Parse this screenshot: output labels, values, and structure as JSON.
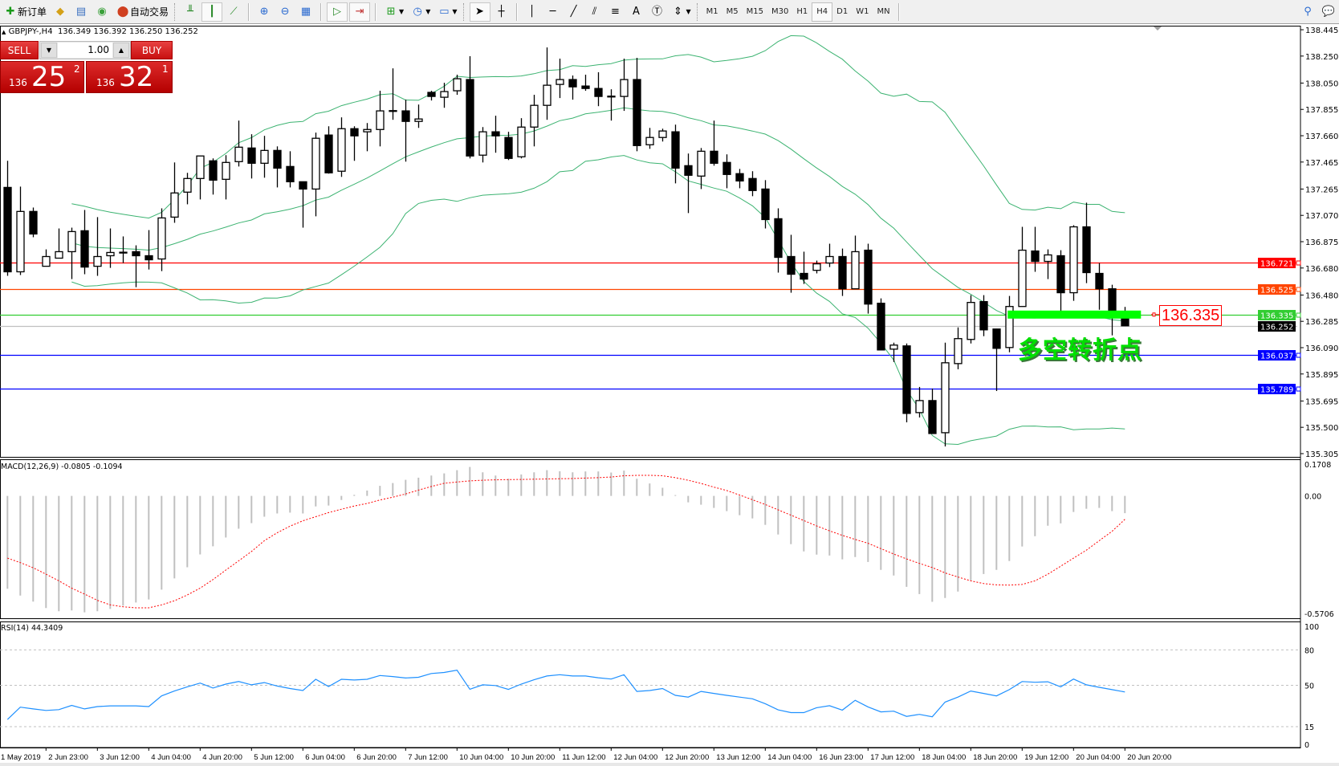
{
  "toolbar": {
    "new_order_label": "新订单",
    "auto_trading_label": "自动交易",
    "timeframes": [
      "M1",
      "M5",
      "M15",
      "M30",
      "H1",
      "H4",
      "D1",
      "W1",
      "MN"
    ],
    "active_timeframe": "H4"
  },
  "chart_header": {
    "symbol": "GBPJPY-,H4",
    "ohlc": "136.349 136.392 136.250 136.252"
  },
  "trade_panel": {
    "sell_label": "SELL",
    "buy_label": "BUY",
    "lot": "1.00",
    "sell_price": {
      "prefix": "136",
      "big": "25",
      "sup": "2"
    },
    "buy_price": {
      "prefix": "136",
      "big": "32",
      "sup": "1"
    }
  },
  "annotation": {
    "text": "多空转折点",
    "price_label": "136.335",
    "color": "#00e000"
  },
  "chart_data": {
    "type": "candlestick",
    "symbol": "GBPJPY",
    "timeframe": "H4",
    "ylim": [
      135.281,
      138.475
    ],
    "price_axis_ticks": [
      "138.445",
      "138.250",
      "138.050",
      "137.855",
      "137.660",
      "137.465",
      "137.265",
      "137.070",
      "136.875",
      "136.680",
      "136.480",
      "136.285",
      "136.090",
      "135.895",
      "135.695",
      "135.500",
      "135.305"
    ],
    "time_axis_labels": [
      "1 May 2019",
      "2 Jun 23:00",
      "3 Jun 12:00",
      "4 Jun 04:00",
      "4 Jun 20:00",
      "5 Jun 12:00",
      "6 Jun 04:00",
      "6 Jun 20:00",
      "7 Jun 12:00",
      "10 Jun 04:00",
      "10 Jun 20:00",
      "11 Jun 12:00",
      "12 Jun 04:00",
      "12 Jun 20:00",
      "13 Jun 12:00",
      "14 Jun 04:00",
      "16 Jun 23:00",
      "17 Jun 12:00",
      "18 Jun 04:00",
      "18 Jun 20:00",
      "19 Jun 12:00",
      "20 Jun 04:00",
      "20 Jun 20:00"
    ],
    "ohlc": [
      [
        137.277,
        137.474,
        136.622,
        136.652
      ],
      [
        136.652,
        137.283,
        136.628,
        137.099
      ],
      [
        137.099,
        137.128,
        136.908,
        136.932
      ],
      [
        136.693,
        136.818,
        136.693,
        136.765
      ],
      [
        136.753,
        136.973,
        136.753,
        136.801
      ],
      [
        136.801,
        136.979,
        136.598,
        136.95
      ],
      [
        136.956,
        137.11,
        136.634,
        136.687
      ],
      [
        136.693,
        137.057,
        136.622,
        136.765
      ],
      [
        136.771,
        136.973,
        136.681,
        136.795
      ],
      [
        136.797,
        136.914,
        136.717,
        136.795
      ],
      [
        136.801,
        136.848,
        136.538,
        136.771
      ],
      [
        136.771,
        136.961,
        136.669,
        136.741
      ],
      [
        136.747,
        137.122,
        136.657,
        137.051
      ],
      [
        137.057,
        137.462,
        137.015,
        137.236
      ],
      [
        137.242,
        137.385,
        137.152,
        137.343
      ],
      [
        137.343,
        137.512,
        137.188,
        137.51
      ],
      [
        137.474,
        137.492,
        137.224,
        137.331
      ],
      [
        137.337,
        137.516,
        137.188,
        137.462
      ],
      [
        137.468,
        137.772,
        137.432,
        137.575
      ],
      [
        137.569,
        137.671,
        137.343,
        137.456
      ],
      [
        137.456,
        137.659,
        137.349,
        137.551
      ],
      [
        137.551,
        137.581,
        137.277,
        137.42
      ],
      [
        137.432,
        137.545,
        137.277,
        137.319
      ],
      [
        137.319,
        137.321,
        136.979,
        137.265
      ],
      [
        137.265,
        137.683,
        137.063,
        137.641
      ],
      [
        137.665,
        137.73,
        137.379,
        137.385
      ],
      [
        137.397,
        137.796,
        137.355,
        137.712
      ],
      [
        137.712,
        137.73,
        137.474,
        137.659
      ],
      [
        137.689,
        137.754,
        137.545,
        137.706
      ],
      [
        137.706,
        137.993,
        137.581,
        137.844
      ],
      [
        137.846,
        138.159,
        137.778,
        137.844
      ],
      [
        137.844,
        137.927,
        137.468,
        137.766
      ],
      [
        137.766,
        137.891,
        137.718,
        137.784
      ],
      [
        137.981,
        137.993,
        137.921,
        137.951
      ],
      [
        137.945,
        138.052,
        137.867,
        137.987
      ],
      [
        137.993,
        138.112,
        137.963,
        138.082
      ],
      [
        138.076,
        138.249,
        137.492,
        137.51
      ],
      [
        137.516,
        137.724,
        137.462,
        137.689
      ],
      [
        137.689,
        137.808,
        137.534,
        137.659
      ],
      [
        137.647,
        137.689,
        137.48,
        137.492
      ],
      [
        137.504,
        137.79,
        137.492,
        137.724
      ],
      [
        137.724,
        137.963,
        137.581,
        137.885
      ],
      [
        137.885,
        138.314,
        137.778,
        138.034
      ],
      [
        138.04,
        138.231,
        137.939,
        138.076
      ],
      [
        138.076,
        138.106,
        137.927,
        138.022
      ],
      [
        138.028,
        138.112,
        137.993,
        138.01
      ],
      [
        138.01,
        138.13,
        137.879,
        137.951
      ],
      [
        137.953,
        138.004,
        137.772,
        137.951
      ],
      [
        137.951,
        138.231,
        137.844,
        138.076
      ],
      [
        138.076,
        138.237,
        137.545,
        137.587
      ],
      [
        137.593,
        137.718,
        137.563,
        137.647
      ],
      [
        137.647,
        137.712,
        137.617,
        137.695
      ],
      [
        137.689,
        137.742,
        137.307,
        137.42
      ],
      [
        137.438,
        137.528,
        137.087,
        137.367
      ],
      [
        137.361,
        137.569,
        137.265,
        137.545
      ],
      [
        137.545,
        137.772,
        137.438,
        137.456
      ],
      [
        137.462,
        137.522,
        137.271,
        137.373
      ],
      [
        137.379,
        137.414,
        137.271,
        137.325
      ],
      [
        137.343,
        137.397,
        137.212,
        137.254
      ],
      [
        137.265,
        137.331,
        136.973,
        137.039
      ],
      [
        137.045,
        137.122,
        136.646,
        136.759
      ],
      [
        136.765,
        136.926,
        136.497,
        136.634
      ],
      [
        136.64,
        136.801,
        136.562,
        136.598
      ],
      [
        136.663,
        136.735,
        136.64,
        136.711
      ],
      [
        136.717,
        136.86,
        136.687,
        136.765
      ],
      [
        136.765,
        136.824,
        136.473,
        136.526
      ],
      [
        136.526,
        136.92,
        136.524,
        136.801
      ],
      [
        136.812,
        136.86,
        136.342,
        136.413
      ],
      [
        136.419,
        136.455,
        136.071,
        136.073
      ],
      [
        136.079,
        136.127,
        135.984,
        136.109
      ],
      [
        136.103,
        136.121,
        135.537,
        135.603
      ],
      [
        135.609,
        135.799,
        135.573,
        135.698
      ],
      [
        135.698,
        135.787,
        135.452,
        135.454
      ],
      [
        135.46,
        136.127,
        135.358,
        135.978
      ],
      [
        135.972,
        136.24,
        135.93,
        136.157
      ],
      [
        136.151,
        136.479,
        136.121,
        136.425
      ],
      [
        136.431,
        136.479,
        136.175,
        136.222
      ],
      [
        136.228,
        136.23,
        135.769,
        136.085
      ],
      [
        136.091,
        136.473,
        136.056,
        136.395
      ],
      [
        136.395,
        136.985,
        136.393,
        136.812
      ],
      [
        136.806,
        136.985,
        136.652,
        136.729
      ],
      [
        136.729,
        136.818,
        136.598,
        136.777
      ],
      [
        136.771,
        136.812,
        136.36,
        136.497
      ],
      [
        136.497,
        136.997,
        136.437,
        136.985
      ],
      [
        136.985,
        137.164,
        136.568,
        136.646
      ],
      [
        136.64,
        136.717,
        136.371,
        136.526
      ],
      [
        136.526,
        136.556,
        136.181,
        136.354
      ],
      [
        136.349,
        136.392,
        136.25,
        136.252
      ]
    ],
    "bollinger": {
      "period": 20,
      "deviation": 2,
      "color": "#3cb371"
    },
    "levels": [
      {
        "price": "136.721",
        "color": "#ff0000"
      },
      {
        "price": "136.525",
        "color": "#ff4500"
      },
      {
        "price": "136.335",
        "color": "#32cd32"
      },
      {
        "price": "136.252",
        "color": "#000000",
        "line_color": "#c0c0c0"
      },
      {
        "price": "136.037",
        "color": "#0000ff"
      },
      {
        "price": "135.789",
        "color": "#0000ff"
      }
    ],
    "annotation_bar": {
      "price": 136.335,
      "from_index": 78,
      "to_index": 87,
      "color": "#00ff00"
    },
    "macd": {
      "label": "MACD(12,26,9) -0.0805 -0.1094",
      "ylim": [
        -0.5706,
        0.1708
      ],
      "axis_ticks": [
        "0.1708",
        "0.00",
        "-0.5706"
      ],
      "main": [
        -0.433,
        -0.465,
        -0.493,
        -0.523,
        -0.538,
        -0.534,
        -0.543,
        -0.538,
        -0.527,
        -0.512,
        -0.497,
        -0.483,
        -0.437,
        -0.385,
        -0.333,
        -0.273,
        -0.235,
        -0.194,
        -0.153,
        -0.127,
        -0.097,
        -0.082,
        -0.078,
        -0.082,
        -0.049,
        -0.045,
        -0.019,
        0.005,
        0.025,
        0.047,
        0.06,
        0.075,
        0.085,
        0.095,
        0.105,
        0.12,
        0.135,
        0.11,
        0.095,
        0.08,
        0.1,
        0.11,
        0.12,
        0.115,
        0.11,
        0.114,
        0.114,
        0.109,
        0.118,
        0.08,
        0.058,
        0.038,
        0.004,
        -0.03,
        -0.041,
        -0.056,
        -0.071,
        -0.09,
        -0.105,
        -0.135,
        -0.18,
        -0.225,
        -0.259,
        -0.274,
        -0.278,
        -0.296,
        -0.285,
        -0.308,
        -0.345,
        -0.371,
        -0.424,
        -0.458,
        -0.494,
        -0.476,
        -0.446,
        -0.394,
        -0.364,
        -0.345,
        -0.304,
        -0.236,
        -0.188,
        -0.139,
        -0.128,
        -0.075,
        -0.06,
        -0.056,
        -0.071,
        -0.0805
      ],
      "signal": [
        -0.29,
        -0.311,
        -0.335,
        -0.365,
        -0.396,
        -0.43,
        -0.458,
        -0.487,
        -0.508,
        -0.517,
        -0.522,
        -0.522,
        -0.508,
        -0.489,
        -0.462,
        -0.43,
        -0.39,
        -0.346,
        -0.303,
        -0.259,
        -0.209,
        -0.172,
        -0.141,
        -0.116,
        -0.097,
        -0.078,
        -0.062,
        -0.047,
        -0.035,
        -0.019,
        -0.006,
        0.009,
        0.027,
        0.044,
        0.059,
        0.065,
        0.07,
        0.073,
        0.075,
        0.076,
        0.077,
        0.078,
        0.079,
        0.08,
        0.081,
        0.083,
        0.085,
        0.088,
        0.094,
        0.096,
        0.096,
        0.094,
        0.085,
        0.073,
        0.058,
        0.041,
        0.025,
        0.004,
        -0.018,
        -0.04,
        -0.065,
        -0.09,
        -0.115,
        -0.14,
        -0.163,
        -0.184,
        -0.203,
        -0.221,
        -0.246,
        -0.271,
        -0.294,
        -0.315,
        -0.334,
        -0.359,
        -0.378,
        -0.396,
        -0.409,
        -0.415,
        -0.416,
        -0.413,
        -0.396,
        -0.365,
        -0.328,
        -0.29,
        -0.253,
        -0.209,
        -0.165,
        -0.1094
      ],
      "histogram_color": "#c0c0c0",
      "signal_color": "#ff0000"
    },
    "rsi": {
      "label": "RSI(14) 44.3409",
      "ylim": [
        0,
        100
      ],
      "axis_ticks": [
        "100",
        "80",
        "50",
        "15",
        "0"
      ],
      "levels": [
        80,
        50,
        15
      ],
      "values": [
        21,
        31.5,
        30,
        28.7,
        29.4,
        33,
        30,
        32,
        32.6,
        32.6,
        32.6,
        32,
        41,
        45.2,
        48.7,
        51.9,
        47.7,
        51,
        53.2,
        50.4,
        52.3,
        49.4,
        47.3,
        45.6,
        55.1,
        49,
        55.1,
        54.5,
        55.1,
        58.3,
        57.4,
        56.2,
        56.8,
        60,
        60.9,
        62.8,
        46.7,
        50.4,
        49.8,
        46.5,
        51,
        54.7,
        57.9,
        59,
        57.9,
        57.9,
        56.4,
        55.3,
        59,
        44.8,
        45.6,
        47.3,
        41.5,
        40,
        44.8,
        43.1,
        41.5,
        40,
        38.6,
        34.4,
        29.2,
        26.9,
        26.9,
        31,
        32.7,
        29,
        37.3,
        31.7,
        27.5,
        28.1,
        23.7,
        25.4,
        23.3,
        35.8,
        40,
        45.2,
        43.1,
        41,
        46.3,
        53.2,
        52.6,
        53,
        48.7,
        55.3,
        50.4,
        48.3,
        46.3,
        44.3409
      ],
      "color": "#1e90ff"
    }
  }
}
